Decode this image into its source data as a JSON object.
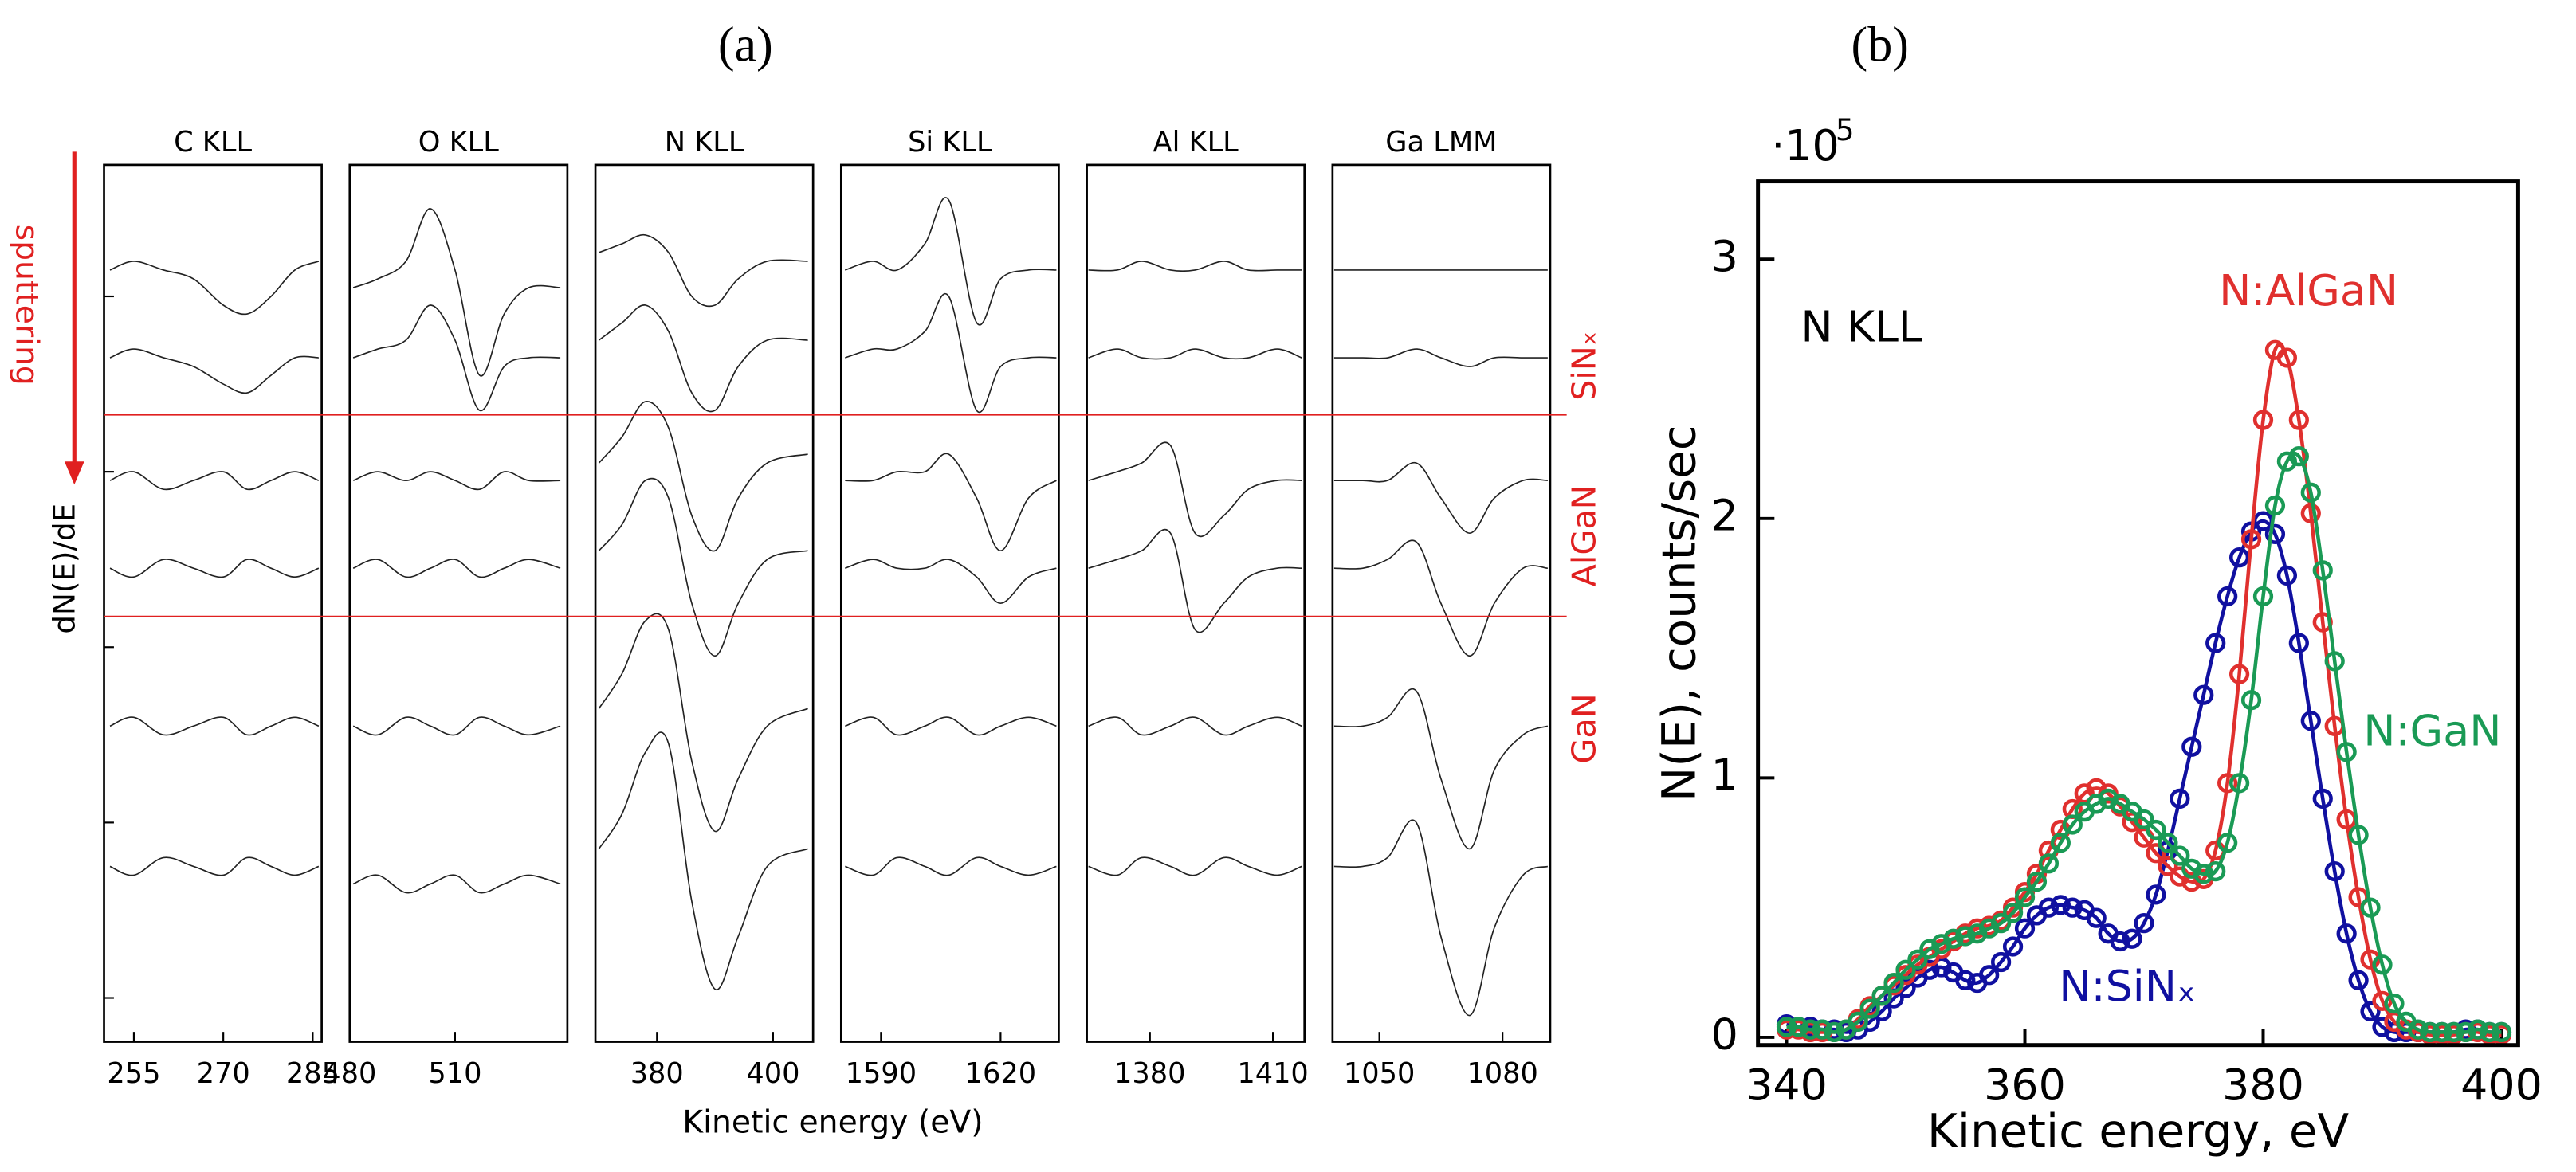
{
  "figure": {
    "panel_a_label": "(a)",
    "panel_b_label": "(b)",
    "ylabel": "dN(E)/dE",
    "xlabel": "Kinetic energy (eV)",
    "arrow_label": "sputtering",
    "regions": [
      "SiNₓ",
      "AlGaN",
      "GaN"
    ],
    "boundaries": [
      71.5,
      48.5
    ],
    "boundary_color": "#e02020"
  },
  "chart_data": [
    {
      "type": "line",
      "title": "C KLL",
      "color": "#222222",
      "xlim": [
        250,
        286.5
      ],
      "ylim": [
        0,
        100
      ],
      "xticks": [
        255,
        270,
        285
      ],
      "yticks": [
        5,
        25,
        45,
        65,
        85
      ],
      "ytick_labels": false,
      "x": [
        251,
        255,
        260,
        265,
        270,
        274,
        278,
        282,
        286
      ],
      "series": [
        {
          "values": [
            88,
            89,
            88,
            87,
            84,
            83,
            85,
            88,
            89
          ]
        },
        {
          "values": [
            78,
            79,
            78,
            77,
            75,
            74,
            76,
            78,
            78
          ]
        },
        {
          "values": [
            64,
            65,
            63,
            64,
            65,
            63,
            64,
            65,
            64
          ]
        },
        {
          "values": [
            54,
            53,
            55,
            54,
            53,
            55,
            54,
            53,
            54
          ]
        },
        {
          "values": [
            36,
            37,
            35,
            36,
            37,
            35,
            36,
            37,
            36
          ]
        },
        {
          "values": [
            20,
            19,
            21,
            20,
            19,
            21,
            20,
            19,
            20
          ]
        }
      ]
    },
    {
      "type": "line",
      "title": "O KLL",
      "color": "#222222",
      "xlim": [
        480,
        542
      ],
      "ylim": [
        0,
        100
      ],
      "xticks": [
        480,
        510
      ],
      "x": [
        481,
        488,
        496,
        503,
        510,
        517,
        524,
        531,
        540
      ],
      "series": [
        {
          "values": [
            86,
            87,
            89,
            95,
            88,
            76,
            83,
            86,
            86
          ]
        },
        {
          "values": [
            78,
            79,
            80,
            84,
            80,
            72,
            77,
            78,
            78
          ]
        },
        {
          "values": [
            64,
            65,
            64,
            65,
            64,
            63,
            65,
            64,
            64
          ]
        },
        {
          "values": [
            54,
            55,
            53,
            54,
            55,
            53,
            54,
            55,
            54
          ]
        },
        {
          "values": [
            36,
            35,
            37,
            36,
            35,
            37,
            36,
            35,
            36
          ]
        },
        {
          "values": [
            18,
            19,
            17,
            18,
            19,
            17,
            18,
            19,
            18
          ]
        }
      ]
    },
    {
      "type": "line",
      "title": "N KLL",
      "color": "#222222",
      "xlim": [
        369.4,
        406.9
      ],
      "ylim": [
        0,
        100
      ],
      "xticks": [
        380,
        400
      ],
      "x": [
        370,
        374,
        378,
        382,
        386,
        390,
        394,
        399,
        406
      ],
      "series": [
        {
          "values": [
            90,
            91,
            92,
            90,
            85,
            84,
            87,
            89,
            89
          ]
        },
        {
          "values": [
            80,
            82,
            84,
            81,
            74,
            72,
            77,
            80,
            80
          ]
        },
        {
          "values": [
            66,
            69,
            73,
            70,
            60,
            56,
            62,
            66,
            67
          ]
        },
        {
          "values": [
            56,
            59,
            64,
            62,
            50,
            44,
            50,
            55,
            56
          ]
        },
        {
          "values": [
            38,
            42,
            48,
            47,
            32,
            24,
            30,
            36,
            38
          ]
        },
        {
          "values": [
            22,
            26,
            33,
            34,
            16,
            6,
            12,
            20,
            22
          ]
        }
      ]
    },
    {
      "type": "line",
      "title": "Si KLL",
      "color": "#222222",
      "xlim": [
        1580,
        1634.6
      ],
      "ylim": [
        0,
        100
      ],
      "xticks": [
        1590,
        1620
      ],
      "x": [
        1581,
        1588,
        1594,
        1601,
        1607,
        1614,
        1620,
        1627,
        1634
      ],
      "series": [
        {
          "values": [
            88,
            89,
            88,
            91,
            96,
            82,
            87,
            88,
            88
          ]
        },
        {
          "values": [
            78,
            79,
            79,
            81,
            85,
            72,
            77,
            78,
            78
          ]
        },
        {
          "values": [
            64,
            64,
            65,
            65,
            67,
            62,
            56,
            62,
            64
          ]
        },
        {
          "values": [
            54,
            55,
            54,
            54,
            55,
            53,
            50,
            53,
            54
          ]
        },
        {
          "values": [
            36,
            37,
            35,
            36,
            37,
            35,
            36,
            37,
            36
          ]
        },
        {
          "values": [
            20,
            19,
            21,
            20,
            19,
            21,
            20,
            19,
            20
          ]
        }
      ]
    },
    {
      "type": "line",
      "title": "Al KLL",
      "color": "#222222",
      "xlim": [
        1364.6,
        1417.7
      ],
      "ylim": [
        0,
        100
      ],
      "xticks": [
        1380,
        1410
      ],
      "x": [
        1365,
        1372,
        1378,
        1385,
        1391,
        1398,
        1404,
        1411,
        1417
      ],
      "series": [
        {
          "values": [
            88,
            88,
            89,
            88,
            88,
            89,
            88,
            88,
            88
          ]
        },
        {
          "values": [
            78,
            79,
            78,
            78,
            79,
            78,
            78,
            79,
            78
          ]
        },
        {
          "values": [
            64,
            65,
            66,
            68,
            58,
            60,
            63,
            64,
            64
          ]
        },
        {
          "values": [
            54,
            55,
            56,
            58,
            47,
            50,
            53,
            54,
            54
          ]
        },
        {
          "values": [
            36,
            37,
            35,
            36,
            37,
            35,
            36,
            37,
            36
          ]
        },
        {
          "values": [
            20,
            19,
            21,
            20,
            19,
            21,
            20,
            19,
            20
          ]
        }
      ]
    },
    {
      "type": "line",
      "title": "Ga LMM",
      "color": "#222222",
      "xlim": [
        1038.6,
        1091.6
      ],
      "ylim": [
        0,
        100
      ],
      "xticks": [
        1050,
        1080
      ],
      "x": [
        1039,
        1046,
        1052,
        1059,
        1065,
        1072,
        1078,
        1085,
        1091
      ],
      "series": [
        {
          "values": [
            88,
            88,
            88,
            88,
            88,
            88,
            88,
            88,
            88
          ]
        },
        {
          "values": [
            78,
            78,
            78,
            79,
            78,
            77,
            78,
            78,
            78
          ]
        },
        {
          "values": [
            64,
            64,
            64,
            66,
            62,
            58,
            62,
            64,
            64
          ]
        },
        {
          "values": [
            54,
            54,
            55,
            57,
            50,
            44,
            50,
            54,
            54
          ]
        },
        {
          "values": [
            36,
            36,
            37,
            40,
            30,
            22,
            31,
            35,
            36
          ]
        },
        {
          "values": [
            20,
            20,
            21,
            25,
            12,
            3,
            13,
            19,
            20
          ]
        }
      ]
    },
    {
      "type": "line",
      "markers": true,
      "xlabel": "Kinetic energy, eV",
      "ylabel": "N(E), counts/sec",
      "annotation": "N KLL",
      "y_multiplier": {
        "base": "·10",
        "exponent": "5"
      },
      "xlim": [
        337.6,
        401.4
      ],
      "ylim": [
        -0.03,
        3.3
      ],
      "xticks": [
        340,
        360,
        380,
        400
      ],
      "yticks": [
        0,
        1,
        2,
        3
      ],
      "x": [
        340,
        341,
        342,
        343,
        344,
        345,
        346,
        347,
        348,
        349,
        350,
        351,
        352,
        353,
        354,
        355,
        356,
        357,
        358,
        359,
        360,
        361,
        362,
        363,
        364,
        365,
        366,
        367,
        368,
        369,
        370,
        371,
        372,
        373,
        374,
        375,
        376,
        377,
        378,
        379,
        380,
        381,
        382,
        383,
        384,
        385,
        386,
        387,
        388,
        389,
        390,
        391,
        392,
        393,
        394,
        395,
        396,
        397,
        398,
        399,
        400
      ],
      "series": [
        {
          "name": "N:SiNₓ",
          "color": "#1010a0",
          "values": [
            0.05,
            0.04,
            0.04,
            0.03,
            0.03,
            0.02,
            0.03,
            0.06,
            0.1,
            0.15,
            0.19,
            0.23,
            0.26,
            0.27,
            0.25,
            0.22,
            0.21,
            0.24,
            0.29,
            0.35,
            0.42,
            0.47,
            0.5,
            0.51,
            0.5,
            0.49,
            0.46,
            0.4,
            0.37,
            0.38,
            0.44,
            0.55,
            0.72,
            0.92,
            1.12,
            1.32,
            1.52,
            1.7,
            1.85,
            1.95,
            1.99,
            1.94,
            1.78,
            1.52,
            1.22,
            0.92,
            0.64,
            0.4,
            0.22,
            0.1,
            0.04,
            0.02,
            0.02,
            0.02,
            0.02,
            0.02,
            0.02,
            0.03,
            0.03,
            0.02,
            0.02
          ]
        },
        {
          "name": "N:AlGaN",
          "color": "#e0302e",
          "values": [
            0.03,
            0.03,
            0.02,
            0.02,
            0.02,
            0.03,
            0.07,
            0.12,
            0.16,
            0.2,
            0.24,
            0.28,
            0.31,
            0.34,
            0.37,
            0.4,
            0.42,
            0.43,
            0.45,
            0.5,
            0.56,
            0.63,
            0.72,
            0.8,
            0.88,
            0.94,
            0.96,
            0.94,
            0.89,
            0.83,
            0.77,
            0.71,
            0.66,
            0.62,
            0.6,
            0.61,
            0.72,
            0.98,
            1.4,
            1.92,
            2.38,
            2.65,
            2.62,
            2.38,
            2.02,
            1.6,
            1.2,
            0.84,
            0.54,
            0.3,
            0.14,
            0.06,
            0.03,
            0.02,
            0.01,
            0.01,
            0.01,
            0.02,
            0.02,
            0.01,
            0.01
          ]
        },
        {
          "name": "N:GaN",
          "color": "#1a9a55",
          "values": [
            0.04,
            0.04,
            0.03,
            0.03,
            0.02,
            0.03,
            0.06,
            0.11,
            0.16,
            0.21,
            0.26,
            0.3,
            0.34,
            0.36,
            0.38,
            0.39,
            0.4,
            0.42,
            0.44,
            0.48,
            0.54,
            0.6,
            0.67,
            0.75,
            0.82,
            0.87,
            0.9,
            0.92,
            0.9,
            0.87,
            0.84,
            0.8,
            0.75,
            0.7,
            0.65,
            0.63,
            0.64,
            0.75,
            0.98,
            1.3,
            1.7,
            2.05,
            2.22,
            2.24,
            2.1,
            1.8,
            1.45,
            1.1,
            0.78,
            0.5,
            0.28,
            0.13,
            0.06,
            0.03,
            0.02,
            0.02,
            0.02,
            0.02,
            0.03,
            0.02,
            0.02
          ]
        }
      ]
    }
  ]
}
